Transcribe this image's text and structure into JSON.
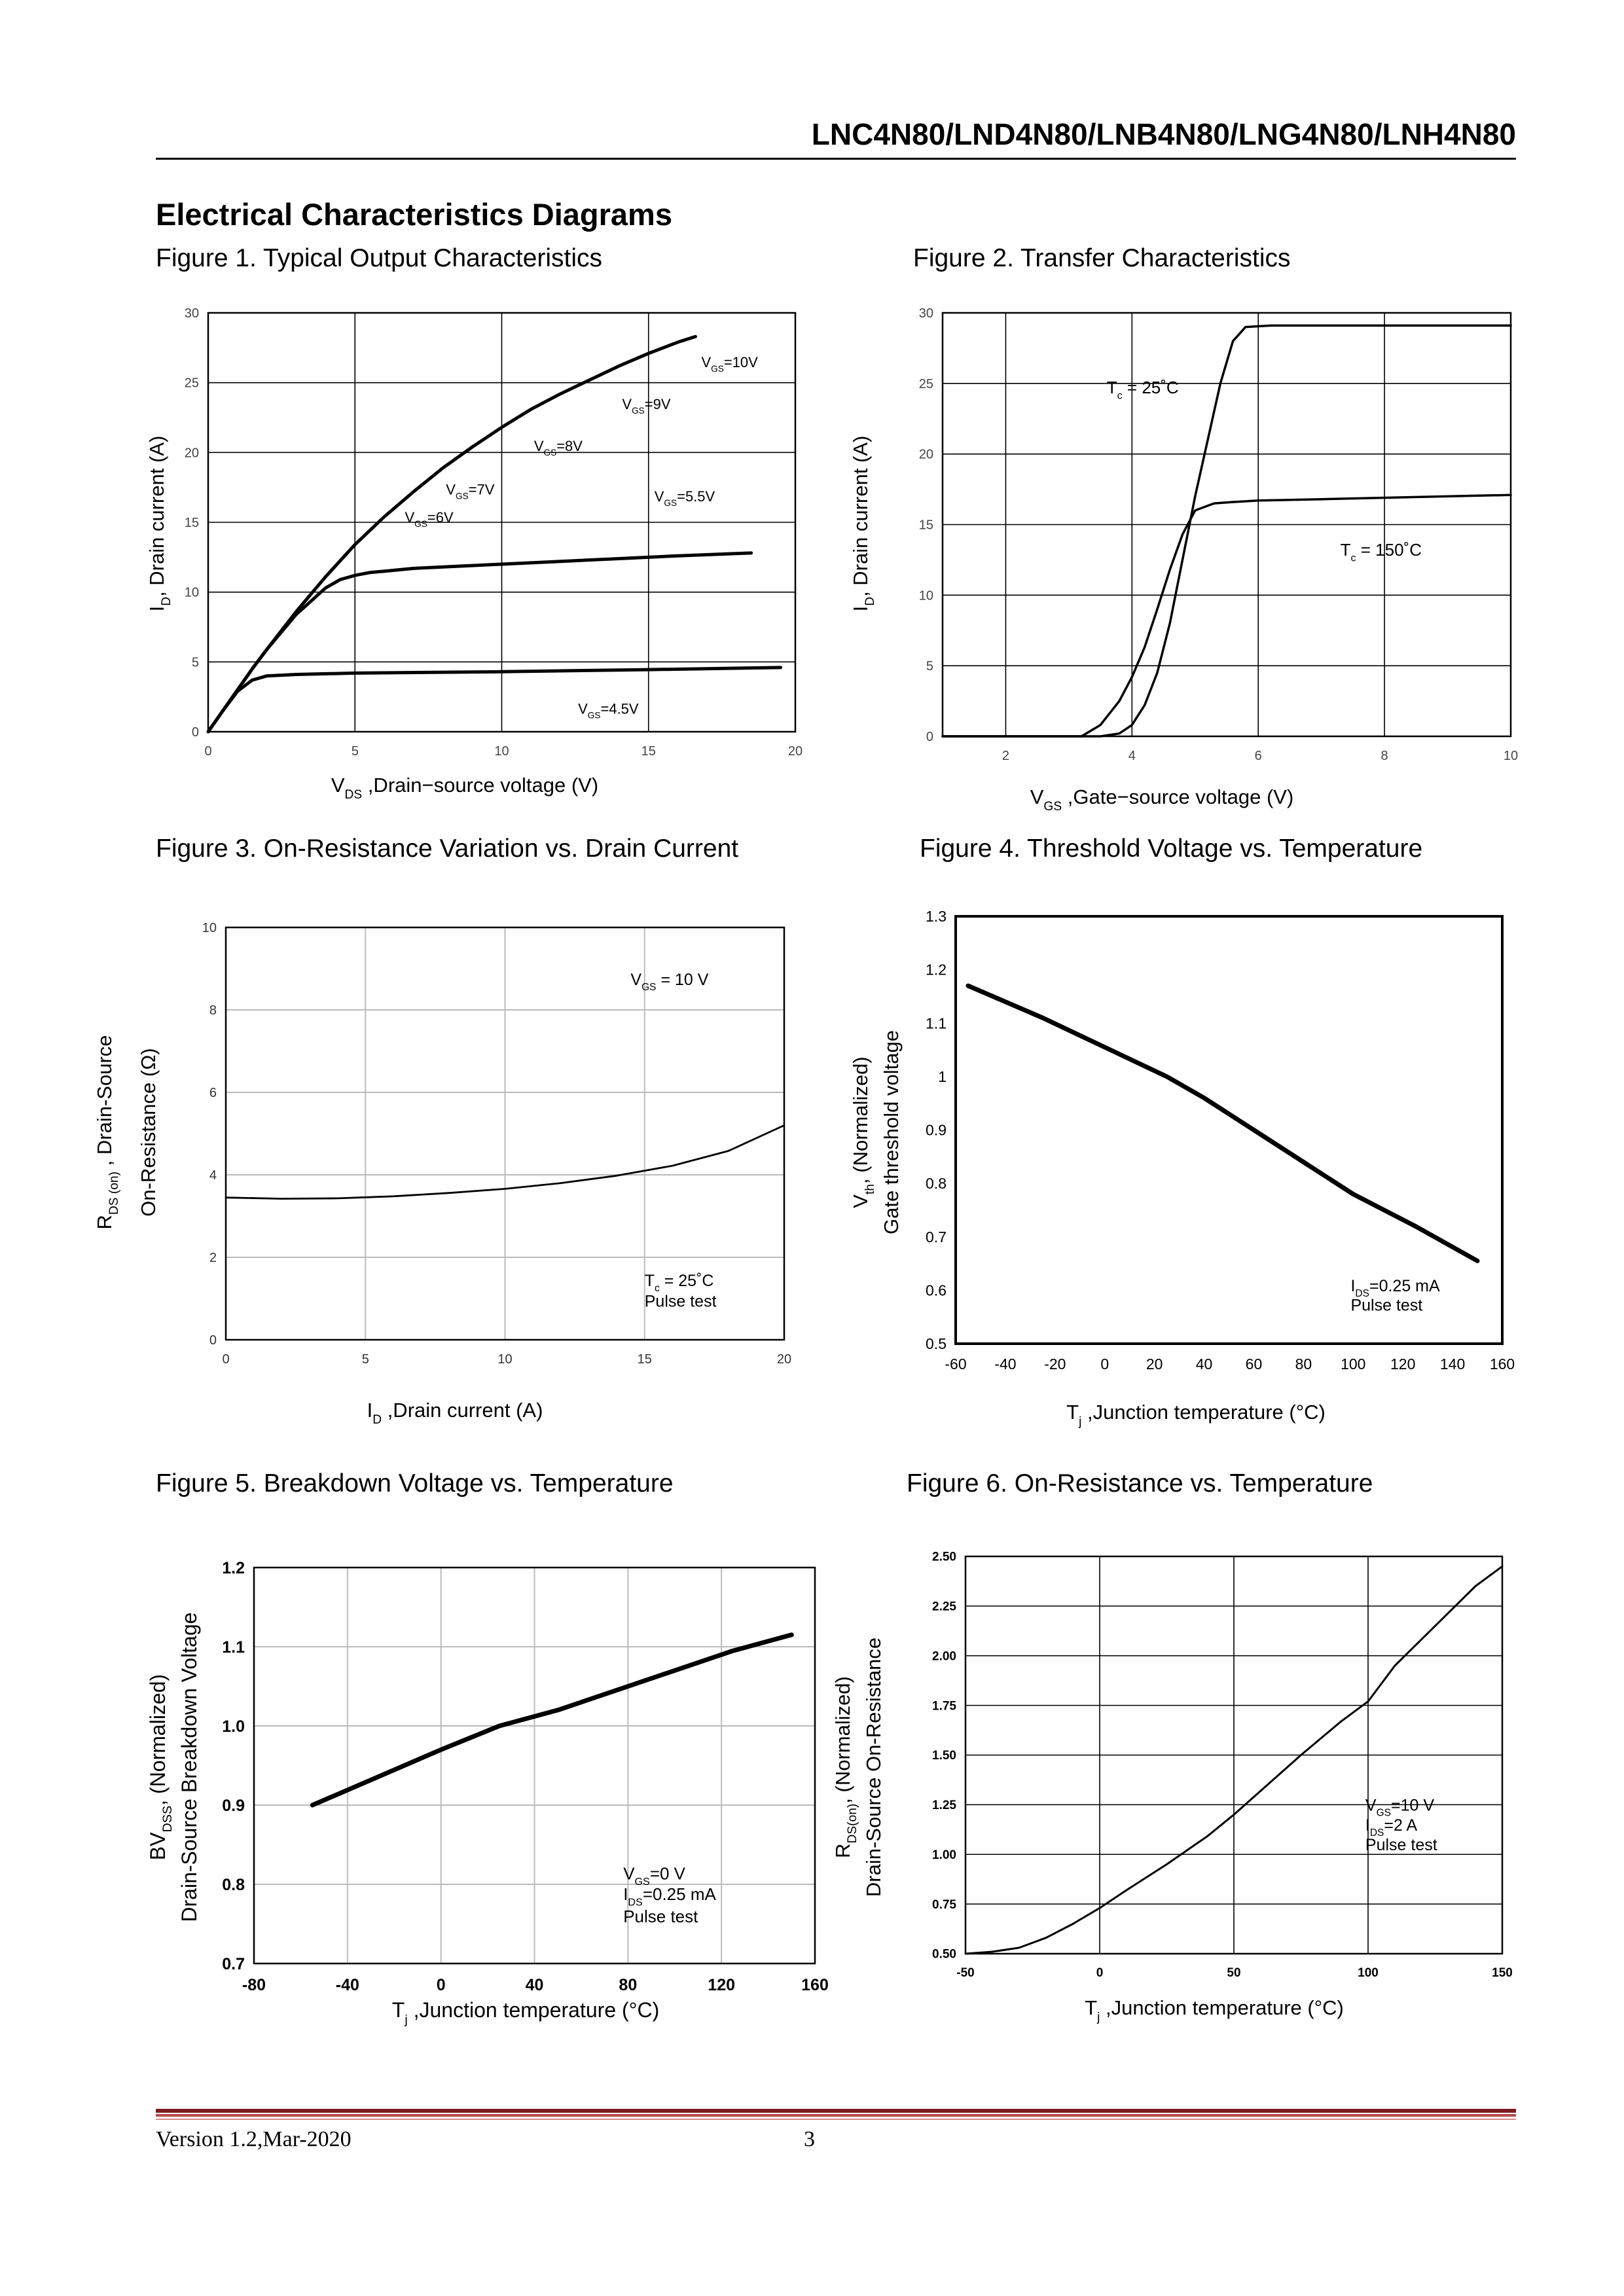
{
  "header": {
    "title": "LNC4N80/LND4N80/LNB4N80/LNG4N80/LNH4N80"
  },
  "section": {
    "title": "Electrical Characteristics Diagrams"
  },
  "figures": [
    {
      "title": "Figure 1. Typical Output Characteristics"
    },
    {
      "title": "Figure 2. Transfer Characteristics"
    },
    {
      "title": "Figure 3. On-Resistance Variation vs. Drain Current"
    },
    {
      "title": "Figure 4. Threshold Voltage vs. Temperature"
    },
    {
      "title": "Figure 5. Breakdown Voltage vs. Temperature"
    },
    {
      "title": "Figure 6. On-Resistance vs. Temperature"
    }
  ],
  "footer": {
    "version": "Version 1.2,Mar-2020",
    "page": "3"
  },
  "chart_data": [
    {
      "type": "line",
      "xlabel": [
        [
          "V"
        ],
        [
          "DS",
          "sub"
        ],
        [
          " ,Drain−source voltage (V)"
        ]
      ],
      "ylabel": [
        [
          "I"
        ],
        [
          "D",
          "sub"
        ],
        [
          ", Drain current (A)"
        ]
      ],
      "xlim": [
        0,
        20
      ],
      "ylim": [
        0,
        30
      ],
      "xticks": [
        0,
        5,
        10,
        15,
        20
      ],
      "yticks": [
        0,
        5,
        10,
        15,
        20,
        25,
        30
      ],
      "grid": true,
      "series": [
        {
          "x": [
            0,
            0.5,
            1,
            1.5,
            2,
            3,
            4,
            5,
            6,
            7,
            8,
            9,
            10,
            11,
            12,
            13,
            14,
            15,
            16,
            16.6
          ],
          "y": [
            0,
            1.5,
            3,
            4.5,
            5.9,
            8.6,
            11.1,
            13.4,
            15.4,
            17.2,
            18.9,
            20.4,
            21.8,
            23.1,
            24.2,
            25.2,
            26.2,
            27.1,
            27.9,
            28.3
          ]
        },
        {
          "x": [
            0,
            0.5,
            1,
            1.5,
            2,
            3,
            4,
            4.5,
            5,
            5.5,
            6,
            7,
            8,
            10,
            12,
            14,
            16,
            18.5
          ],
          "y": [
            0,
            1.5,
            3,
            4.5,
            5.9,
            8.4,
            10.3,
            10.9,
            11.2,
            11.4,
            11.5,
            11.7,
            11.8,
            12.0,
            12.2,
            12.4,
            12.6,
            12.8
          ]
        },
        {
          "x": [
            0,
            0.5,
            1,
            1.5,
            2,
            3,
            5,
            10,
            15,
            19.5
          ],
          "y": [
            0,
            1.5,
            2.9,
            3.7,
            4.0,
            4.1,
            4.2,
            4.3,
            4.45,
            4.6
          ]
        }
      ],
      "annotations": [
        {
          "x": 16.8,
          "y": 26.1,
          "parts": [
            [
              "V"
            ],
            [
              "GS",
              "sub"
            ],
            [
              "=10V"
            ]
          ]
        },
        {
          "x": 14.1,
          "y": 23.1,
          "parts": [
            [
              "V"
            ],
            [
              "GS",
              "sub"
            ],
            [
              "=9V"
            ]
          ]
        },
        {
          "x": 11.1,
          "y": 20.1,
          "parts": [
            [
              "V"
            ],
            [
              "GS",
              "sub"
            ],
            [
              "=8V"
            ]
          ]
        },
        {
          "x": 8.1,
          "y": 17.0,
          "parts": [
            [
              "V"
            ],
            [
              "GS",
              "sub"
            ],
            [
              "=7V"
            ]
          ]
        },
        {
          "x": 6.7,
          "y": 15.0,
          "parts": [
            [
              "V"
            ],
            [
              "GS",
              "sub"
            ],
            [
              "=6V"
            ]
          ]
        },
        {
          "x": 15.2,
          "y": 16.5,
          "parts": [
            [
              "V"
            ],
            [
              "GS",
              "sub"
            ],
            [
              "=5.5V"
            ]
          ]
        },
        {
          "x": 12.6,
          "y": 1.3,
          "parts": [
            [
              "V"
            ],
            [
              "GS",
              "sub"
            ],
            [
              "=4.5V"
            ]
          ]
        }
      ]
    },
    {
      "type": "line",
      "xlabel": [
        [
          "V"
        ],
        [
          "GS",
          "sub"
        ],
        [
          " ,Gate−source voltage (V)"
        ]
      ],
      "ylabel": [
        [
          "I"
        ],
        [
          "D",
          "sub"
        ],
        [
          ", Drain current (A)"
        ]
      ],
      "xlim": [
        1,
        10
      ],
      "ylim": [
        0,
        30
      ],
      "xticks": [
        2,
        4,
        6,
        8,
        10
      ],
      "yticks": [
        0,
        5,
        10,
        15,
        20,
        25,
        30
      ],
      "grid": true,
      "series": [
        {
          "x": [
            1,
            3.5,
            3.8,
            4.0,
            4.2,
            4.4,
            4.6,
            4.8,
            5.0,
            5.2,
            5.4,
            5.6,
            5.8,
            6.2,
            7,
            8,
            10
          ],
          "y": [
            0,
            0,
            0.2,
            0.8,
            2.2,
            4.5,
            8,
            12.5,
            17,
            21,
            25,
            28,
            29,
            29.1,
            29.1,
            29.1,
            29.1
          ]
        },
        {
          "x": [
            1,
            3.2,
            3.5,
            3.8,
            4.0,
            4.2,
            4.4,
            4.6,
            4.8,
            5.0,
            5.3,
            5.6,
            6,
            7,
            8,
            10
          ],
          "y": [
            0,
            0,
            0.8,
            2.5,
            4.2,
            6.3,
            9,
            11.8,
            14.3,
            16,
            16.5,
            16.6,
            16.7,
            16.8,
            16.9,
            17.1
          ]
        }
      ],
      "annotations": [
        {
          "x": 3.6,
          "y": 24.3,
          "parts": [
            [
              "T"
            ],
            [
              "c",
              "sub"
            ],
            [
              " = 25˚C"
            ]
          ]
        },
        {
          "x": 7.3,
          "y": 12.8,
          "parts": [
            [
              "T"
            ],
            [
              "c",
              "sub"
            ],
            [
              " = 150˚C"
            ]
          ]
        }
      ]
    },
    {
      "type": "line",
      "xlabel": [
        [
          "I"
        ],
        [
          "D",
          "sub"
        ],
        [
          " ,Drain current (A)"
        ]
      ],
      "ylabel": [
        [
          "R"
        ],
        [
          "DS (on)",
          "sub"
        ],
        [
          " , Drain-Source"
        ]
      ],
      "ylabel2": [
        [
          "On-Resistance     (Ω)"
        ]
      ],
      "xlim": [
        0,
        20
      ],
      "ylim": [
        0,
        10
      ],
      "xticks": [
        0,
        5,
        10,
        15,
        20
      ],
      "yticks": [
        0,
        2,
        4,
        6,
        8,
        10
      ],
      "grid": true,
      "series": [
        {
          "x": [
            0,
            2,
            4,
            6,
            8,
            10,
            12,
            14,
            16,
            18,
            20
          ],
          "y": [
            3.45,
            3.42,
            3.43,
            3.48,
            3.56,
            3.66,
            3.8,
            3.98,
            4.22,
            4.58,
            5.2
          ]
        }
      ],
      "annotations": [
        {
          "x": 14.5,
          "y": 8.6,
          "parts": [
            [
              "V"
            ],
            [
              "GS",
              "sub"
            ],
            [
              " = 10 V"
            ]
          ]
        },
        {
          "x": 15.0,
          "y": 1.3,
          "parts": [
            [
              "T"
            ],
            [
              "c",
              "sub"
            ],
            [
              " = 25˚C"
            ]
          ]
        },
        {
          "x": 15.0,
          "y": 0.8,
          "parts": [
            [
              "Pulse test"
            ]
          ]
        }
      ]
    },
    {
      "type": "line",
      "xlabel": [
        [
          "T"
        ],
        [
          "j",
          "sub"
        ],
        [
          " ,Junction temperature (°C)"
        ]
      ],
      "ylabel": [
        [
          "V"
        ],
        [
          "th",
          "sub"
        ],
        [
          ", (Normalized)"
        ]
      ],
      "ylabel2": [
        [
          "Gate threshold voltage"
        ]
      ],
      "xlim": [
        -60,
        160
      ],
      "ylim": [
        0.5,
        1.3
      ],
      "xticks": [
        -60,
        -40,
        -20,
        0,
        20,
        40,
        60,
        80,
        100,
        120,
        140,
        160
      ],
      "yticks": [
        0.5,
        0.6,
        0.7,
        0.8,
        0.9,
        1.0,
        1.1,
        1.2,
        1.3
      ],
      "ytick_labels": [
        "0.5",
        "0.6",
        "0.7",
        "0.8",
        "0.9",
        "1",
        "1.1",
        "1.2",
        "1.3"
      ],
      "grid": false,
      "series": [
        {
          "x": [
            -55,
            -25,
            0,
            25,
            40,
            60,
            80,
            100,
            125,
            150
          ],
          "y": [
            1.17,
            1.11,
            1.055,
            1.0,
            0.96,
            0.9,
            0.84,
            0.78,
            0.72,
            0.655
          ]
        }
      ],
      "annotations": [
        {
          "x": 99,
          "y": 0.598,
          "parts": [
            [
              "I"
            ],
            [
              "DS",
              "sub"
            ],
            [
              "=0.25 mA"
            ]
          ]
        },
        {
          "x": 99,
          "y": 0.562,
          "parts": [
            [
              "Pulse test"
            ]
          ]
        }
      ]
    },
    {
      "type": "line",
      "xlabel": [
        [
          "T"
        ],
        [
          "j",
          "sub"
        ],
        [
          " ,Junction temperature (°C)"
        ]
      ],
      "ylabel": [
        [
          "BV"
        ],
        [
          "DSS",
          "sub"
        ],
        [
          ", (Normalized)"
        ]
      ],
      "ylabel2": [
        [
          "Drain-Source Breakdown Voltage"
        ]
      ],
      "xlim": [
        -80,
        160
      ],
      "ylim": [
        0.7,
        1.2
      ],
      "xticks": [
        -80,
        -40,
        0,
        40,
        80,
        120,
        160
      ],
      "yticks": [
        0.7,
        0.8,
        0.9,
        1.0,
        1.1,
        1.2
      ],
      "ytick_labels": [
        "0.7",
        "0.8",
        "0.9",
        "1.0",
        "1.1",
        "1.2"
      ],
      "grid": true,
      "series": [
        {
          "x": [
            -55,
            0,
            25,
            50,
            75,
            100,
            125,
            150
          ],
          "y": [
            0.9,
            0.97,
            1.0,
            1.02,
            1.045,
            1.07,
            1.095,
            1.115
          ]
        }
      ],
      "annotations": [
        {
          "x": 78,
          "y": 0.806,
          "parts": [
            [
              "V"
            ],
            [
              "GS",
              "sub"
            ],
            [
              "=0 V"
            ]
          ]
        },
        {
          "x": 78,
          "y": 0.78,
          "parts": [
            [
              "I"
            ],
            [
              "DS",
              "sub"
            ],
            [
              "=0.25 mA"
            ]
          ]
        },
        {
          "x": 78,
          "y": 0.752,
          "parts": [
            [
              "Pulse test"
            ]
          ]
        }
      ]
    },
    {
      "type": "line",
      "xlabel": [
        [
          "T"
        ],
        [
          "j",
          "sub"
        ],
        [
          " ,Junction temperature (°C)"
        ]
      ],
      "ylabel": [
        [
          "R"
        ],
        [
          "DS(on)",
          "sub"
        ],
        [
          ", (Normalized)"
        ]
      ],
      "ylabel2": [
        [
          "Drain-Source On-Resistance"
        ]
      ],
      "xlim": [
        -50,
        150
      ],
      "ylim": [
        0.5,
        2.5
      ],
      "xticks": [
        -50,
        0,
        50,
        100,
        150
      ],
      "yticks": [
        0.5,
        0.75,
        1.0,
        1.25,
        1.5,
        1.75,
        2.0,
        2.25,
        2.5
      ],
      "ytick_labels": [
        "0.50",
        "0.75",
        "1.00",
        "1.25",
        "1.50",
        "1.75",
        "2.00",
        "2.25",
        "2.50"
      ],
      "grid": true,
      "series": [
        {
          "x": [
            -50,
            -40,
            -30,
            -20,
            -10,
            0,
            10,
            25,
            40,
            50,
            60,
            75,
            90,
            100,
            110,
            125,
            140,
            150
          ],
          "y": [
            0.5,
            0.51,
            0.53,
            0.58,
            0.65,
            0.73,
            0.82,
            0.95,
            1.09,
            1.2,
            1.32,
            1.5,
            1.67,
            1.77,
            1.95,
            2.15,
            2.35,
            2.45
          ]
        }
      ],
      "annotations": [
        {
          "x": 99,
          "y": 1.22,
          "parts": [
            [
              "V"
            ],
            [
              "GS",
              "sub"
            ],
            [
              "=10 V"
            ]
          ]
        },
        {
          "x": 99,
          "y": 1.12,
          "parts": [
            [
              "I"
            ],
            [
              "DS",
              "sub"
            ],
            [
              "=2 A"
            ]
          ]
        },
        {
          "x": 99,
          "y": 1.02,
          "parts": [
            [
              "Pulse test"
            ]
          ]
        }
      ]
    }
  ]
}
